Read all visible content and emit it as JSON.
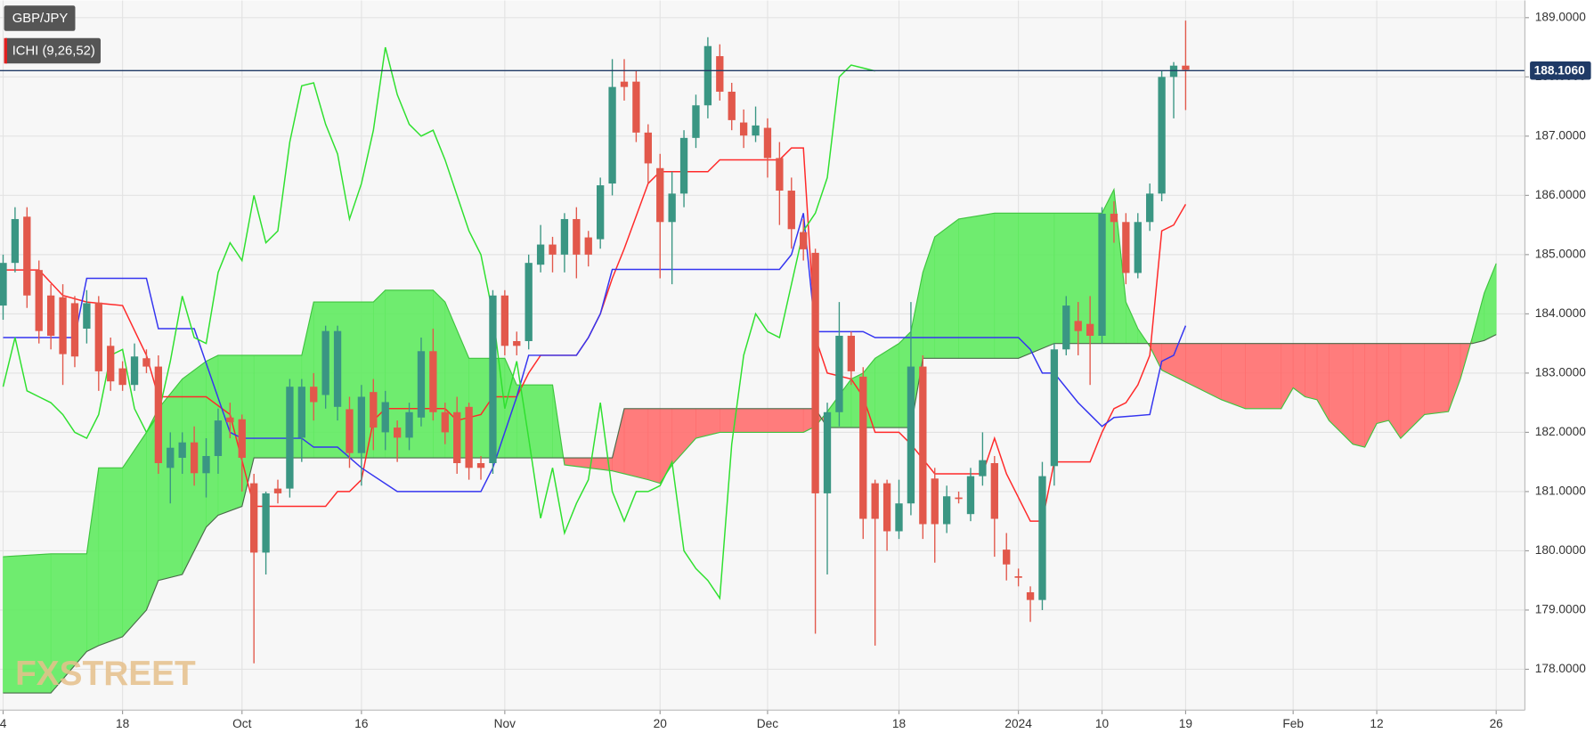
{
  "chart_data": {
    "type": "candlestick",
    "title": "GBP/JPY",
    "indicator": "ICHI (9,26,52)",
    "watermark": "FXSTREET",
    "grid": true,
    "xlim": [
      -0.26,
      127.4
    ],
    "ylim": [
      177.31,
      189.29
    ],
    "xticks": [
      {
        "value": 0,
        "label": "4"
      },
      {
        "value": 10,
        "label": "18"
      },
      {
        "value": 20,
        "label": "Oct"
      },
      {
        "value": 30,
        "label": "16"
      },
      {
        "value": 42,
        "label": "Nov"
      },
      {
        "value": 55,
        "label": "20"
      },
      {
        "value": 64,
        "label": "Dec"
      },
      {
        "value": 75,
        "label": "18"
      },
      {
        "value": 85,
        "label": "2024"
      },
      {
        "value": 92,
        "label": "10"
      },
      {
        "value": 99,
        "label": "19"
      },
      {
        "value": 108,
        "label": "Feb"
      },
      {
        "value": 115,
        "label": "12"
      },
      {
        "value": 125,
        "label": "26"
      }
    ],
    "yticks": [
      {
        "value": 178,
        "label": "178.0000"
      },
      {
        "value": 179,
        "label": "179.0000"
      },
      {
        "value": 180,
        "label": "180.0000"
      },
      {
        "value": 181,
        "label": "181.0000"
      },
      {
        "value": 182,
        "label": "182.0000"
      },
      {
        "value": 183,
        "label": "183.0000"
      },
      {
        "value": 184,
        "label": "184.0000"
      },
      {
        "value": 185,
        "label": "185.0000"
      },
      {
        "value": 186,
        "label": "186.0000"
      },
      {
        "value": 187,
        "label": "187.0000"
      },
      {
        "value": 188,
        "label": "188.0000"
      },
      {
        "value": 189,
        "label": "189.0000"
      }
    ],
    "candles": {
      "up_color": "#3a9683",
      "down_color": "#e2584b",
      "x": [
        0,
        1,
        2,
        3,
        4,
        5,
        6,
        7,
        8,
        9,
        10,
        11,
        12,
        13,
        14,
        15,
        16,
        17,
        18,
        19,
        20,
        21,
        22,
        23,
        24,
        25,
        26,
        27,
        28,
        29,
        30,
        31,
        32,
        33,
        34,
        35,
        36,
        37,
        38,
        39,
        40,
        41,
        42,
        43,
        44,
        45,
        46,
        47,
        48,
        49,
        50,
        51,
        52,
        53,
        54,
        55,
        56,
        57,
        58,
        59,
        60,
        61,
        62,
        63,
        64,
        65,
        66,
        67,
        68,
        69,
        70,
        71,
        72,
        73,
        74,
        75,
        76,
        77,
        78,
        79,
        80,
        81,
        82,
        83,
        84,
        85,
        86,
        87,
        88,
        89,
        90,
        91,
        92,
        93,
        94,
        95,
        96,
        97,
        98,
        99
      ],
      "open": [
        184.14,
        184.86,
        185.64,
        184.74,
        184.31,
        184.28,
        184.18,
        183.75,
        184.19,
        183.46,
        183.08,
        182.8,
        183.25,
        183.11,
        181.4,
        181.57,
        181.83,
        181.31,
        181.6,
        182.25,
        182.22,
        181.14,
        179.97,
        181.05,
        181.05,
        181.91,
        182.77,
        182.63,
        182.43,
        182.39,
        181.65,
        182.68,
        182.0,
        182.08,
        181.91,
        182.25,
        183.37,
        182.34,
        182.34,
        182.43,
        181.48,
        181.48,
        184.31,
        183.54,
        183.54,
        184.83,
        185.17,
        185.0,
        185.6,
        185.29,
        185.26,
        186.2,
        187.92,
        187.92,
        187.06,
        186.46,
        185.55,
        186.03,
        186.97,
        187.52,
        188.35,
        187.75,
        187.23,
        187.01,
        187.14,
        186.63,
        186.08,
        185.38,
        185.03,
        180.97,
        182.34,
        183.63,
        182.94,
        181.14,
        181.14,
        180.33,
        180.8,
        183.11,
        181.22,
        180.45,
        180.9,
        180.62,
        181.26,
        181.48,
        180.02,
        179.57,
        179.3,
        179.17,
        181.43,
        183.4,
        183.88,
        183.83,
        183.63,
        185.69,
        185.55,
        184.69,
        185.55,
        186.03,
        188.0,
        188.19
      ],
      "high": [
        185.0,
        185.8,
        185.8,
        184.9,
        184.5,
        184.5,
        184.3,
        184.4,
        184.3,
        183.6,
        183.2,
        183.5,
        183.4,
        183.3,
        182.0,
        182.0,
        182.1,
        181.9,
        182.4,
        182.5,
        182.3,
        181.3,
        181.0,
        181.2,
        182.9,
        182.9,
        183.0,
        183.8,
        183.8,
        182.6,
        182.8,
        182.9,
        182.7,
        182.2,
        182.5,
        183.6,
        183.75,
        182.5,
        182.6,
        182.5,
        181.6,
        184.4,
        184.4,
        183.7,
        185.0,
        185.5,
        185.3,
        185.7,
        185.8,
        185.4,
        186.3,
        188.3,
        188.3,
        188.1,
        187.2,
        186.7,
        186.4,
        187.1,
        187.7,
        188.67,
        188.55,
        187.9,
        187.45,
        187.5,
        187.3,
        186.9,
        186.3,
        185.6,
        185.1,
        182.5,
        184.2,
        183.7,
        183.1,
        181.2,
        181.2,
        181.2,
        184.2,
        183.3,
        181.4,
        181.1,
        181.0,
        181.4,
        182.0,
        181.6,
        180.3,
        179.7,
        179.4,
        181.5,
        183.5,
        184.3,
        184.2,
        184.3,
        185.8,
        185.9,
        185.7,
        185.7,
        186.2,
        188.1,
        188.25,
        188.95
      ],
      "low": [
        183.9,
        184.7,
        184.1,
        183.5,
        183.4,
        182.8,
        183.1,
        183.5,
        182.7,
        182.7,
        182.7,
        182.7,
        183.0,
        181.3,
        180.8,
        181.3,
        181.1,
        180.9,
        181.3,
        181.9,
        181.0,
        178.1,
        179.6,
        180.8,
        180.9,
        181.5,
        182.2,
        182.4,
        182.2,
        181.4,
        181.1,
        181.7,
        181.7,
        181.5,
        181.7,
        182.1,
        182.2,
        181.8,
        181.3,
        181.2,
        181.2,
        181.3,
        183.3,
        183.3,
        183.4,
        184.7,
        184.7,
        184.7,
        184.6,
        184.8,
        185.1,
        186.0,
        187.6,
        186.9,
        186.2,
        184.6,
        184.5,
        185.8,
        186.8,
        187.3,
        187.6,
        187.1,
        186.8,
        186.9,
        186.3,
        185.5,
        185.1,
        184.9,
        178.6,
        179.6,
        182.1,
        182.8,
        180.2,
        178.4,
        180.0,
        180.2,
        180.6,
        180.2,
        179.8,
        180.3,
        180.8,
        180.5,
        181.1,
        179.9,
        179.5,
        179.4,
        178.8,
        179.0,
        181.1,
        183.3,
        183.3,
        182.8,
        183.5,
        185.2,
        184.5,
        184.6,
        185.4,
        185.9,
        187.3,
        187.44
      ],
      "close": [
        184.86,
        185.6,
        184.31,
        183.71,
        183.63,
        183.32,
        183.28,
        184.18,
        183.03,
        182.86,
        182.8,
        183.28,
        183.11,
        181.48,
        181.74,
        181.83,
        181.31,
        181.6,
        182.2,
        182.17,
        181.57,
        179.97,
        180.97,
        180.97,
        182.77,
        182.77,
        182.51,
        183.71,
        183.71,
        181.65,
        182.6,
        182.08,
        182.51,
        181.91,
        182.34,
        183.37,
        182.34,
        182.0,
        181.48,
        181.4,
        181.4,
        184.31,
        183.46,
        183.46,
        184.86,
        185.17,
        185.0,
        185.6,
        185.0,
        185.0,
        186.17,
        187.83,
        187.83,
        187.06,
        186.54,
        185.55,
        186.03,
        186.97,
        187.52,
        188.52,
        187.75,
        187.27,
        187.01,
        187.18,
        186.63,
        186.08,
        185.43,
        185.09,
        180.97,
        182.34,
        183.63,
        183.03,
        180.54,
        180.54,
        180.33,
        180.8,
        183.11,
        180.45,
        180.45,
        180.92,
        180.88,
        181.26,
        181.53,
        180.54,
        179.77,
        179.56,
        179.17,
        181.26,
        183.4,
        184.14,
        183.71,
        183.63,
        185.69,
        185.55,
        184.69,
        185.55,
        186.03,
        188.0,
        188.19,
        188.12
      ]
    },
    "lines": [
      {
        "color": "#ff2a2a",
        "x": [
          0,
          3,
          5,
          7,
          10,
          12,
          13,
          17,
          19,
          21,
          27,
          28,
          29,
          30,
          31,
          32,
          37,
          38,
          40,
          41,
          43,
          44,
          45,
          48,
          49,
          50,
          51,
          52,
          54,
          55,
          59,
          60,
          65,
          66,
          67,
          68,
          69,
          71,
          72,
          73,
          75,
          76,
          78,
          82,
          83,
          84,
          85,
          86,
          87,
          88,
          91,
          92,
          93,
          94,
          95,
          96,
          97,
          98,
          99
        ],
        "values": [
          184.74,
          184.74,
          184.31,
          184.2,
          184.14,
          183.3,
          182.6,
          182.6,
          182.3,
          180.75,
          180.75,
          181.0,
          181.0,
          181.2,
          182.2,
          182.4,
          182.4,
          182.2,
          182.3,
          182.6,
          182.6,
          183.0,
          183.3,
          183.3,
          183.6,
          184.0,
          184.6,
          185.1,
          186.2,
          186.4,
          186.4,
          186.6,
          186.6,
          186.8,
          186.8,
          183.6,
          183.0,
          182.9,
          182.6,
          182.0,
          182.0,
          181.8,
          181.3,
          181.3,
          181.9,
          181.3,
          180.9,
          180.5,
          180.5,
          181.5,
          181.5,
          182.0,
          182.4,
          182.5,
          182.8,
          183.3,
          185.4,
          185.5,
          185.85
        ]
      },
      {
        "color": "#3535f0",
        "x": [
          0,
          6,
          7,
          12,
          13,
          16,
          19,
          20,
          25,
          26,
          28,
          30,
          33,
          40,
          41,
          43,
          44,
          48,
          49,
          50,
          51,
          59,
          65,
          66,
          67,
          68,
          72,
          73,
          85,
          86,
          87,
          88,
          90,
          91,
          92,
          93,
          96,
          97,
          98,
          99
        ],
        "values": [
          183.6,
          183.6,
          184.6,
          184.6,
          183.75,
          183.75,
          182.0,
          181.9,
          181.9,
          181.75,
          181.75,
          181.4,
          181.0,
          181.0,
          181.4,
          182.6,
          183.3,
          183.3,
          183.6,
          184.0,
          184.75,
          184.75,
          184.75,
          185.0,
          185.7,
          183.7,
          183.7,
          183.6,
          183.6,
          183.4,
          183.0,
          183.0,
          182.5,
          182.3,
          182.1,
          182.25,
          182.3,
          183.2,
          183.3,
          183.8
        ]
      },
      {
        "color": "#2fe02f",
        "x": [
          0,
          1,
          2,
          3,
          4,
          5,
          6,
          7,
          8,
          9,
          10,
          11,
          12,
          13,
          14,
          15,
          16,
          17,
          18,
          19,
          20,
          21,
          22,
          23,
          24,
          25,
          26,
          27,
          28,
          29,
          30,
          31,
          32,
          33,
          34,
          35,
          36,
          37,
          38,
          39,
          40,
          41,
          42,
          43,
          44,
          45,
          46,
          47,
          48,
          49,
          50,
          51,
          52,
          53,
          54,
          55,
          56,
          57,
          58,
          59,
          60,
          61,
          62,
          63,
          64,
          65,
          66,
          67,
          68,
          69,
          70,
          71,
          72,
          73
        ],
        "values": [
          182.77,
          183.6,
          182.7,
          182.6,
          182.5,
          182.3,
          182.0,
          181.9,
          182.3,
          183.3,
          183.4,
          182.4,
          182.0,
          182.3,
          183.2,
          184.3,
          183.6,
          183.5,
          184.7,
          185.2,
          184.9,
          186.0,
          185.2,
          185.4,
          186.9,
          187.85,
          187.9,
          187.2,
          186.7,
          185.6,
          186.2,
          187.1,
          188.5,
          187.7,
          187.2,
          187.0,
          187.1,
          186.6,
          186.0,
          185.4,
          185.0,
          184.0,
          182.4,
          183.2,
          181.9,
          180.55,
          181.4,
          180.3,
          180.8,
          181.2,
          182.5,
          181.0,
          180.5,
          181.0,
          181.0,
          181.1,
          181.5,
          180.0,
          179.7,
          179.5,
          179.2,
          181.8,
          183.3,
          184.0,
          183.7,
          183.6,
          184.5,
          185.4,
          185.7,
          186.3,
          188.0,
          188.2,
          188.15,
          188.1
        ]
      }
    ],
    "cloud": {
      "up_color": "#5fea5f",
      "down_color": "#ff6e6e",
      "span_a_color": "#3fc43f",
      "span_b_color": "#4a6a4a",
      "x": [
        0,
        4,
        7,
        8,
        10,
        12,
        13,
        15,
        17,
        18,
        20,
        21,
        25,
        26,
        31,
        32,
        36,
        37,
        39,
        42,
        43,
        46,
        47,
        51,
        52,
        54,
        55,
        56,
        58,
        60,
        67,
        68,
        69,
        71,
        72,
        73,
        75,
        76,
        77,
        78,
        80,
        83,
        85,
        88,
        92,
        93,
        94,
        95,
        96,
        97,
        99,
        102,
        104,
        107,
        108,
        109,
        110,
        111,
        113,
        114,
        115,
        116,
        117,
        119,
        121,
        122,
        123,
        124,
        125
      ],
      "span_a": [
        179.9,
        179.95,
        179.95,
        181.4,
        181.4,
        182.0,
        182.4,
        182.9,
        183.2,
        183.3,
        183.3,
        183.3,
        183.3,
        184.2,
        184.2,
        184.4,
        184.4,
        184.2,
        183.25,
        183.25,
        182.8,
        182.8,
        181.45,
        181.35,
        181.3,
        181.2,
        181.14,
        181.45,
        181.9,
        182.0,
        182.0,
        182.1,
        182.35,
        182.9,
        183.0,
        183.25,
        183.5,
        183.7,
        184.7,
        185.3,
        185.6,
        185.7,
        185.7,
        185.7,
        185.7,
        186.1,
        184.2,
        183.75,
        183.45,
        183.05,
        182.85,
        182.55,
        182.4,
        182.4,
        182.75,
        182.6,
        182.55,
        182.2,
        181.8,
        181.75,
        182.15,
        182.2,
        181.9,
        182.3,
        182.35,
        182.9,
        183.6,
        184.35,
        184.85
      ],
      "span_b": [
        177.6,
        177.6,
        178.3,
        178.4,
        178.55,
        179.0,
        179.5,
        179.6,
        180.4,
        180.6,
        180.75,
        181.57,
        181.57,
        181.57,
        181.57,
        181.57,
        181.57,
        181.57,
        181.57,
        181.57,
        181.57,
        181.57,
        181.57,
        181.57,
        182.4,
        182.4,
        182.4,
        182.4,
        182.4,
        182.4,
        182.4,
        182.4,
        182.08,
        182.08,
        182.08,
        182.08,
        182.08,
        182.08,
        183.25,
        183.25,
        183.25,
        183.25,
        183.25,
        183.5,
        183.5,
        183.5,
        183.5,
        183.5,
        183.5,
        183.5,
        183.5,
        183.5,
        183.5,
        183.5,
        183.5,
        183.5,
        183.5,
        183.5,
        183.5,
        183.5,
        183.5,
        183.5,
        183.5,
        183.5,
        183.5,
        183.5,
        183.5,
        183.55,
        183.65
      ]
    },
    "last_price": {
      "value": 188.106,
      "label": "188.1060"
    },
    "last_price_color": "#1f3a66"
  }
}
